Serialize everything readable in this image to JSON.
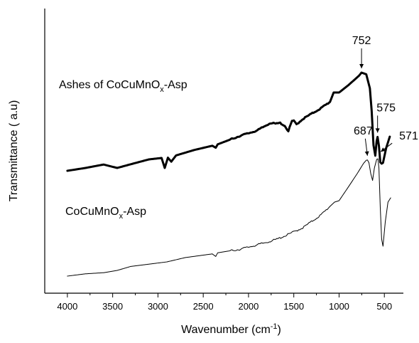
{
  "chart_data": {
    "type": "line",
    "title": "",
    "xlabel_parts": [
      "Wavenumber (cm",
      "-1",
      ")"
    ],
    "ylabel": "Transmittance ( a.u)",
    "xlim": [
      4250,
      290
    ],
    "x_reversed": true,
    "x_ticks": [
      4000,
      3500,
      3000,
      2500,
      2000,
      1500,
      1000,
      500
    ],
    "y_ticks_shown": false,
    "grid": false,
    "series": [
      {
        "label_parts": [
          "Ashes of CoCuMnO",
          "x",
          "-Asp"
        ],
        "line_weight": "bold",
        "points": [
          [
            4000,
            43.0
          ],
          [
            3800,
            44.0
          ],
          [
            3600,
            45.2
          ],
          [
            3450,
            44.0
          ],
          [
            3300,
            45.3
          ],
          [
            3100,
            47.0
          ],
          [
            2960,
            47.5
          ],
          [
            2925,
            44.0
          ],
          [
            2890,
            47.6
          ],
          [
            2853,
            46.2
          ],
          [
            2800,
            48.4
          ],
          [
            2600,
            50.3
          ],
          [
            2400,
            51.8
          ],
          [
            2362,
            51.1
          ],
          [
            2340,
            52.3
          ],
          [
            2100,
            55.2
          ],
          [
            1900,
            57.2
          ],
          [
            1760,
            59.8
          ],
          [
            1700,
            59.5
          ],
          [
            1650,
            59.8
          ],
          [
            1600,
            58.8
          ],
          [
            1560,
            56.9
          ],
          [
            1520,
            60.5
          ],
          [
            1500,
            60.5
          ],
          [
            1470,
            59.3
          ],
          [
            1400,
            61.2
          ],
          [
            1200,
            65.0
          ],
          [
            1100,
            67.2
          ],
          [
            1060,
            70.5
          ],
          [
            1000,
            70.5
          ],
          [
            900,
            73.0
          ],
          [
            780,
            76.4
          ],
          [
            752,
            77.5
          ],
          [
            700,
            76.9
          ],
          [
            660,
            72.0
          ],
          [
            640,
            64.0
          ],
          [
            620,
            52.0
          ],
          [
            600,
            48.3
          ],
          [
            585,
            53.5
          ],
          [
            575,
            54.9
          ],
          [
            560,
            51.8
          ],
          [
            545,
            46.0
          ],
          [
            530,
            45.5
          ],
          [
            515,
            45.8
          ],
          [
            480,
            51.0
          ],
          [
            440,
            55.0
          ]
        ]
      },
      {
        "label_parts": [
          "CoCuMnO",
          "x",
          "-Asp"
        ],
        "line_weight": "thin",
        "points": [
          [
            4000,
            6.0
          ],
          [
            3800,
            6.8
          ],
          [
            3600,
            7.2
          ],
          [
            3450,
            8.0
          ],
          [
            3300,
            9.4
          ],
          [
            3100,
            10.2
          ],
          [
            2900,
            11.0
          ],
          [
            2700,
            12.5
          ],
          [
            2400,
            13.8
          ],
          [
            2362,
            12.9
          ],
          [
            2340,
            14.2
          ],
          [
            2100,
            15.4
          ],
          [
            1900,
            17.0
          ],
          [
            1700,
            18.8
          ],
          [
            1600,
            20.1
          ],
          [
            1400,
            23.0
          ],
          [
            1200,
            27.5
          ],
          [
            1050,
            32.0
          ],
          [
            1000,
            32.5
          ],
          [
            900,
            37.2
          ],
          [
            800,
            42.0
          ],
          [
            730,
            45.6
          ],
          [
            700,
            46.7
          ],
          [
            687,
            46.8
          ],
          [
            670,
            45.8
          ],
          [
            650,
            42.0
          ],
          [
            630,
            39.6
          ],
          [
            610,
            44.0
          ],
          [
            585,
            47.0
          ],
          [
            571,
            47.2
          ],
          [
            560,
            44.0
          ],
          [
            545,
            30.0
          ],
          [
            530,
            19.0
          ],
          [
            515,
            16.5
          ],
          [
            490,
            25.0
          ],
          [
            460,
            32.0
          ],
          [
            430,
            33.5
          ]
        ]
      }
    ],
    "annotations": [
      {
        "label": "752",
        "x": 752,
        "series": 0
      },
      {
        "label": "575",
        "x": 575,
        "series": 0
      },
      {
        "label": "687",
        "x": 687,
        "series": 1
      },
      {
        "label": "571",
        "x": 571,
        "series": 1
      }
    ]
  }
}
